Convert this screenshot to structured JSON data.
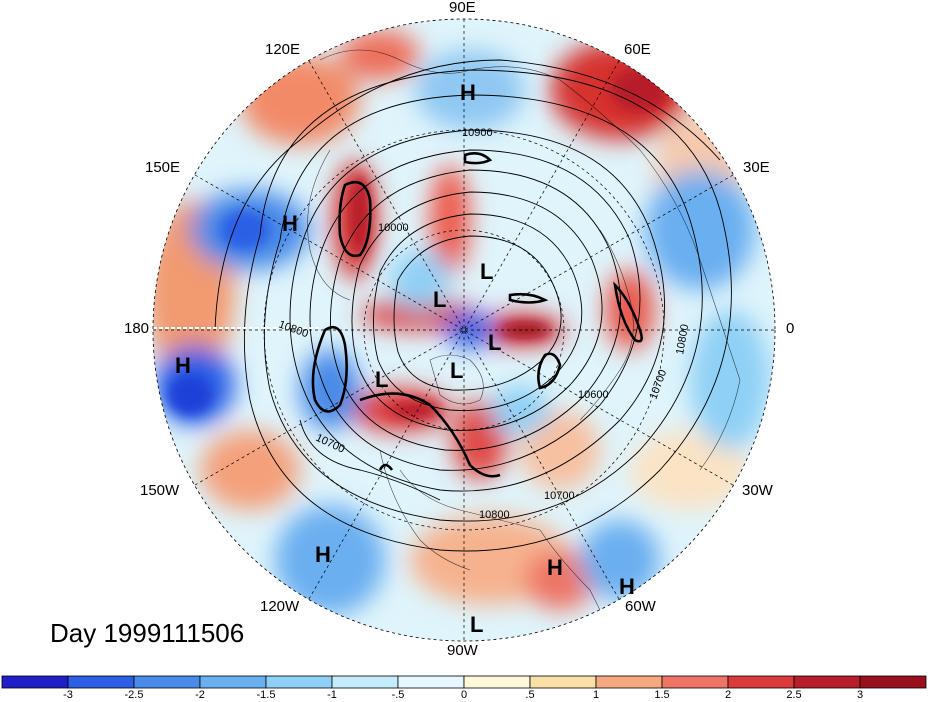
{
  "title": "Day 1999111506",
  "longitude_labels": {
    "lon_90e": "90E",
    "lon_120e": "120E",
    "lon_60e": "60E",
    "lon_150e": "150E",
    "lon_30e": "30E",
    "lon_180": "180",
    "lon_0": "0",
    "lon_150w": "150W",
    "lon_30w": "30W",
    "lon_120w": "120W",
    "lon_60w": "60W",
    "lon_90w": "90W"
  },
  "pressure_centers": [
    {
      "id": "h1",
      "label": "H"
    },
    {
      "id": "h2",
      "label": "H"
    },
    {
      "id": "h3",
      "label": "H"
    },
    {
      "id": "h4",
      "label": "H"
    },
    {
      "id": "h5",
      "label": "H"
    },
    {
      "id": "h6",
      "label": "H"
    },
    {
      "id": "l1",
      "label": "L"
    },
    {
      "id": "l2",
      "label": "L"
    },
    {
      "id": "l3",
      "label": "L"
    },
    {
      "id": "l4",
      "label": "L"
    },
    {
      "id": "l5",
      "label": "L"
    },
    {
      "id": "l6",
      "label": "L"
    }
  ],
  "contour_labels": {
    "c10900": "10900",
    "c10000": "10000",
    "c10800a": "10800",
    "c10700a": "10700",
    "c10600": "10600",
    "c10700b": "10700",
    "c10800b": "10800",
    "c10800c": "10800",
    "c10700c": "10700"
  },
  "colorbar": {
    "ticks": [
      "-3",
      "-2.5",
      "-2",
      "-1.5",
      "-1",
      "-.5",
      "0",
      ".5",
      "1",
      "1.5",
      "2",
      "2.5",
      "3"
    ],
    "colors": [
      "#1f1fc8",
      "#2c5ee6",
      "#4a8ae8",
      "#6aaff0",
      "#8fd0f6",
      "#c4ecfb",
      "#e6f8fd",
      "#fdf8da",
      "#f9dfa8",
      "#f5a980",
      "#ee7565",
      "#dc3a3a",
      "#b81e2a",
      "#9a0f1e"
    ]
  }
}
